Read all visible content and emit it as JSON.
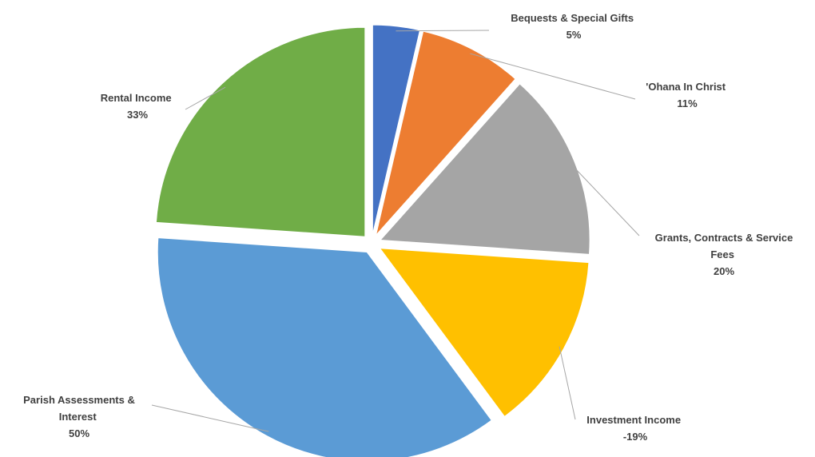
{
  "chart_data": {
    "type": "pie",
    "title": "",
    "slices": [
      {
        "label": "Bequests & Special Gifts",
        "pct_text": "5%",
        "value": 5,
        "color": "#4472c4"
      },
      {
        "label": "'Ohana In Christ",
        "pct_text": "11%",
        "value": 11,
        "color": "#ed7d31"
      },
      {
        "label": "Grants, Contracts & Service Fees",
        "pct_text": "20%",
        "value": 20,
        "color": "#a5a5a5"
      },
      {
        "label": "Investment Income",
        "pct_text": "-19%",
        "value": -19,
        "color": "#ffc000"
      },
      {
        "label": "Parish Assessments & Interest",
        "pct_text": "50%",
        "value": 50,
        "color": "#5b9bd5"
      },
      {
        "label": "Rental Income",
        "pct_text": "33%",
        "value": 33,
        "color": "#70ad47"
      }
    ],
    "legend": "none",
    "data_labels": "outside-with-leader-lines"
  }
}
